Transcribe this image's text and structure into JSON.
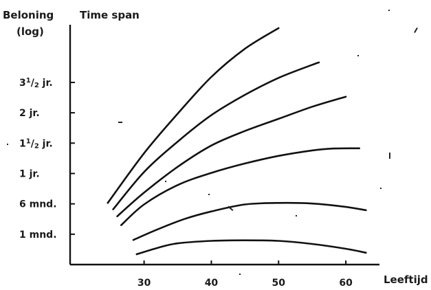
{
  "chart_data": {
    "type": "line",
    "ylabel_line1": "Beloning",
    "ylabel_line2": "(log)",
    "ylabel_right": "Time span",
    "xlabel": "Leeftijd",
    "x_ticks": [
      "30",
      "40",
      "50",
      "60"
    ],
    "x_tick_values": [
      30,
      40,
      50,
      60
    ],
    "xlim": [
      19,
      65
    ],
    "y_ticks": [
      {
        "key": "1 mnd.",
        "text": "1 mnd."
      },
      {
        "key": "6 mnd.",
        "text": "6 mnd."
      },
      {
        "key": "1 jr.",
        "text": "1 jr."
      },
      {
        "key": "1½ jr.",
        "main": "1",
        "sup": "1",
        "sep": "/",
        "sub": "2",
        "tail": " jr."
      },
      {
        "key": "2 jr.",
        "text": "2 jr."
      },
      {
        "key": "3½ jr.",
        "main": "3",
        "sup": "1",
        "sep": "/",
        "sub": "2",
        "tail": " jr."
      }
    ],
    "y_tick_positions": [
      1,
      2,
      3,
      4,
      5,
      6
    ],
    "ylim": [
      0,
      7.9
    ],
    "series": [
      {
        "values": [
          [
            28.9,
            0.34
          ],
          [
            32,
            0.55
          ],
          [
            35,
            0.7
          ],
          [
            40,
            0.78
          ],
          [
            45,
            0.8
          ],
          [
            50,
            0.78
          ],
          [
            55,
            0.68
          ],
          [
            60,
            0.52
          ],
          [
            63,
            0.39
          ]
        ]
      },
      {
        "values": [
          [
            28.4,
            0.81
          ],
          [
            32,
            1.16
          ],
          [
            36,
            1.5
          ],
          [
            40,
            1.75
          ],
          [
            45,
            1.98
          ],
          [
            50,
            2.03
          ],
          [
            55,
            2.01
          ],
          [
            60,
            1.9
          ],
          [
            63,
            1.79
          ]
        ]
      },
      {
        "values": [
          [
            26.6,
            1.3
          ],
          [
            30,
            1.98
          ],
          [
            35,
            2.62
          ],
          [
            40,
            3.02
          ],
          [
            45,
            3.33
          ],
          [
            50,
            3.58
          ],
          [
            55,
            3.76
          ],
          [
            58,
            3.82
          ],
          [
            62,
            3.83
          ]
        ]
      },
      {
        "values": [
          [
            26,
            1.59
          ],
          [
            30,
            2.37
          ],
          [
            35,
            3.22
          ],
          [
            40,
            3.92
          ],
          [
            45,
            4.4
          ],
          [
            50,
            4.8
          ],
          [
            55,
            5.2
          ],
          [
            60,
            5.53
          ]
        ]
      },
      {
        "values": [
          [
            25.4,
            1.82
          ],
          [
            30,
            3.05
          ],
          [
            35,
            4.05
          ],
          [
            40,
            4.92
          ],
          [
            45,
            5.59
          ],
          [
            50,
            6.15
          ],
          [
            55,
            6.58
          ],
          [
            56,
            6.66
          ]
        ]
      },
      {
        "values": [
          [
            24.6,
            2.03
          ],
          [
            30,
            3.67
          ],
          [
            35,
            4.97
          ],
          [
            40,
            6.18
          ],
          [
            45,
            7.11
          ],
          [
            50,
            7.79
          ]
        ]
      }
    ]
  }
}
